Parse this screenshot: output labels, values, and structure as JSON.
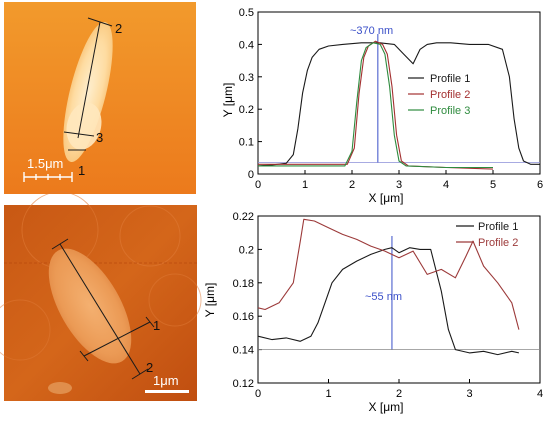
{
  "images": [
    {
      "scale_bar": "1.5μm",
      "line_labels": [
        "1",
        "2",
        "3"
      ]
    },
    {
      "scale_bar": "1μm",
      "line_labels": [
        "1",
        "2"
      ]
    }
  ],
  "chart_data": [
    {
      "type": "line",
      "xlabel": "X [μm]",
      "ylabel": "Y [μm]",
      "xlim": [
        0,
        6
      ],
      "ylim": [
        0,
        0.5
      ],
      "xticks": [
        0,
        1,
        2,
        3,
        4,
        5,
        6
      ],
      "yticks": [
        0,
        0.1,
        0.2,
        0.3,
        0.4,
        0.5
      ],
      "legend_position": "right",
      "annotation": {
        "text": "~370 nm",
        "color": "#3a4fc8",
        "x_marker": 2.55,
        "y_baseline": 0.035
      },
      "series": [
        {
          "name": "Profile 1",
          "color": "#1a1a1a",
          "x": [
            0,
            0.3,
            0.6,
            0.75,
            0.85,
            0.95,
            1.05,
            1.15,
            1.3,
            1.5,
            1.8,
            2.2,
            2.6,
            2.9,
            3.1,
            3.3,
            3.45,
            3.6,
            3.8,
            4.1,
            4.5,
            4.9,
            5.2,
            5.35,
            5.45,
            5.55,
            5.65,
            5.8,
            6.0
          ],
          "y": [
            0.025,
            0.028,
            0.033,
            0.06,
            0.14,
            0.25,
            0.32,
            0.36,
            0.385,
            0.395,
            0.4,
            0.405,
            0.405,
            0.4,
            0.37,
            0.34,
            0.385,
            0.4,
            0.405,
            0.405,
            0.4,
            0.4,
            0.385,
            0.3,
            0.17,
            0.08,
            0.04,
            0.03,
            0.03
          ]
        },
        {
          "name": "Profile 2",
          "color": "#a33030",
          "x": [
            0,
            1.0,
            1.9,
            2.05,
            2.15,
            2.25,
            2.35,
            2.5,
            2.65,
            2.75,
            2.85,
            2.95,
            3.05,
            3.2,
            4.0,
            5.0
          ],
          "y": [
            0.03,
            0.03,
            0.03,
            0.08,
            0.25,
            0.36,
            0.395,
            0.41,
            0.4,
            0.37,
            0.27,
            0.12,
            0.04,
            0.025,
            0.02,
            0.015
          ]
        },
        {
          "name": "Profile 3",
          "color": "#2e8b3e",
          "x": [
            0,
            1.0,
            1.85,
            2.0,
            2.1,
            2.2,
            2.3,
            2.45,
            2.6,
            2.7,
            2.8,
            2.9,
            3.0,
            3.15,
            4.0,
            5.0
          ],
          "y": [
            0.025,
            0.025,
            0.025,
            0.07,
            0.22,
            0.35,
            0.39,
            0.405,
            0.4,
            0.37,
            0.27,
            0.12,
            0.04,
            0.025,
            0.02,
            0.02
          ]
        }
      ]
    },
    {
      "type": "line",
      "xlabel": "X [μm]",
      "ylabel": "Y [μm]",
      "xlim": [
        0,
        4
      ],
      "ylim": [
        0.12,
        0.22
      ],
      "xticks": [
        0,
        1,
        2,
        3,
        4
      ],
      "yticks": [
        0.12,
        0.14,
        0.16,
        0.18,
        0.2,
        0.22
      ],
      "legend_position": "top-right",
      "annotation": {
        "text": "~55 nm",
        "color": "#3a4fc8",
        "x_marker": 1.9,
        "y_baseline": 0.14
      },
      "series": [
        {
          "name": "Profile 1",
          "color": "#1a1a1a",
          "x": [
            0,
            0.2,
            0.4,
            0.6,
            0.75,
            0.85,
            0.95,
            1.05,
            1.2,
            1.4,
            1.6,
            1.8,
            1.9,
            2.0,
            2.15,
            2.3,
            2.45,
            2.6,
            2.7,
            2.8,
            3.0,
            3.2,
            3.4,
            3.6,
            3.7
          ],
          "y": [
            0.148,
            0.146,
            0.147,
            0.145,
            0.148,
            0.156,
            0.168,
            0.18,
            0.188,
            0.193,
            0.197,
            0.2,
            0.201,
            0.198,
            0.201,
            0.2,
            0.2,
            0.175,
            0.152,
            0.14,
            0.138,
            0.139,
            0.137,
            0.139,
            0.138
          ]
        },
        {
          "name": "Profile 2",
          "color": "#9c3a3a",
          "x": [
            0,
            0.1,
            0.3,
            0.5,
            0.6,
            0.65,
            0.8,
            1.0,
            1.2,
            1.4,
            1.6,
            1.8,
            2.0,
            2.2,
            2.4,
            2.6,
            2.8,
            2.95,
            3.05,
            3.2,
            3.4,
            3.6,
            3.7
          ],
          "y": [
            0.165,
            0.164,
            0.168,
            0.18,
            0.205,
            0.218,
            0.217,
            0.213,
            0.209,
            0.206,
            0.202,
            0.199,
            0.195,
            0.199,
            0.185,
            0.188,
            0.183,
            0.196,
            0.205,
            0.19,
            0.18,
            0.168,
            0.152
          ]
        }
      ]
    }
  ]
}
